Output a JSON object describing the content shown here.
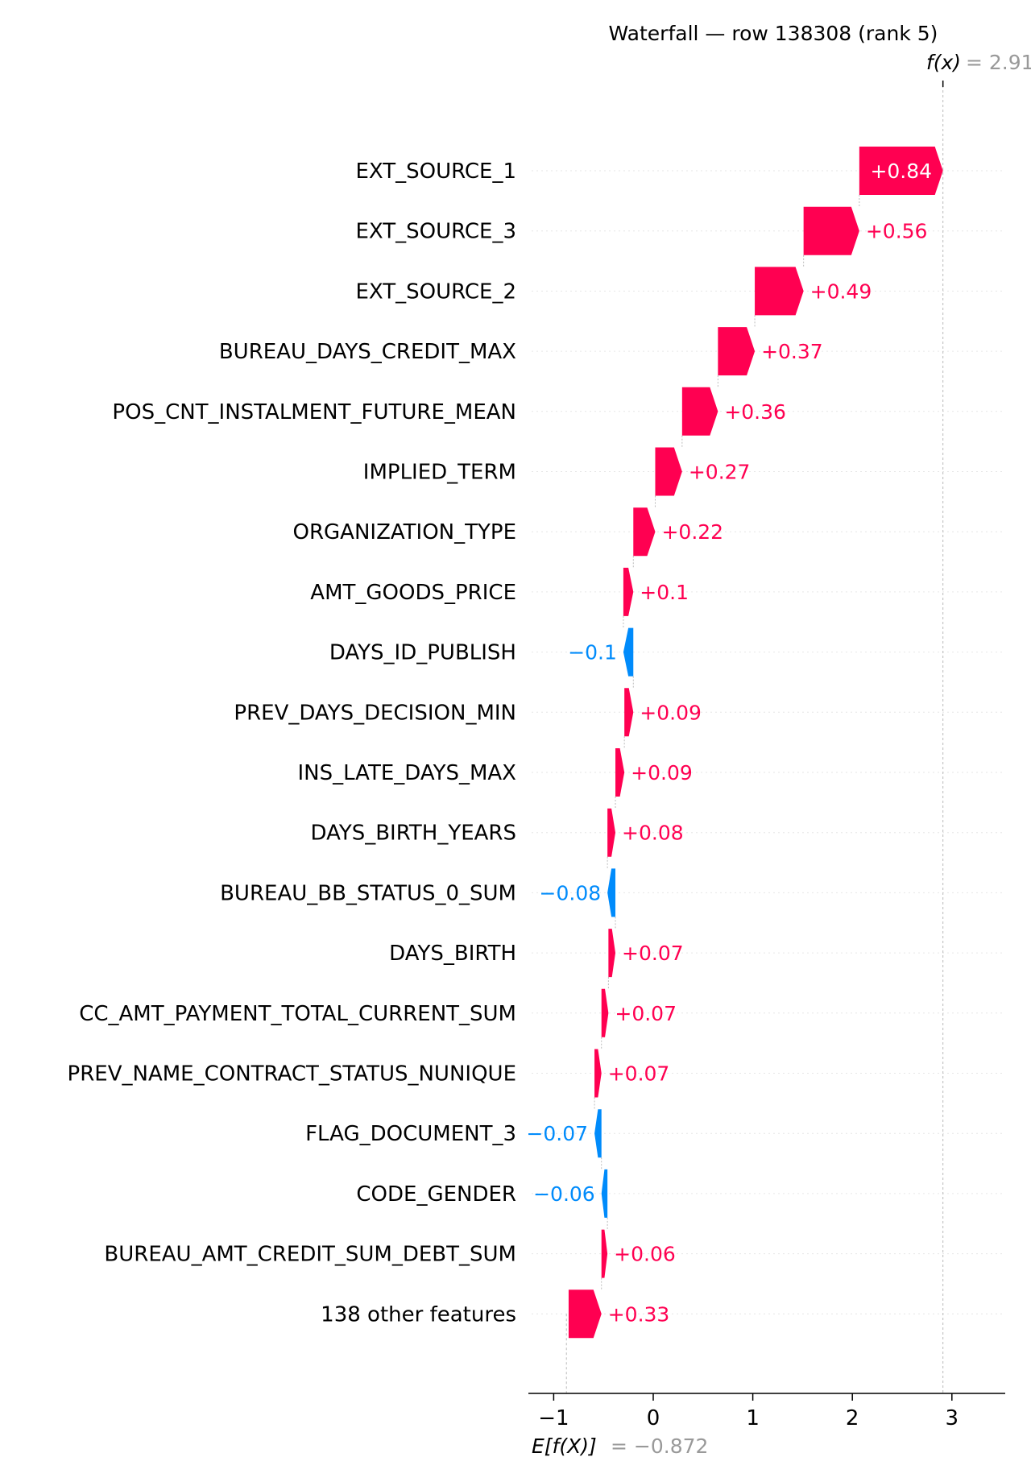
{
  "chart_data": {
    "type": "waterfall",
    "title": "Waterfall — row 138308 (rank 5)",
    "fx_label": "f(x)",
    "fx_value_text": "= 2.91",
    "ex_label": "E[f(X)]",
    "ex_value_text": "= −0.872",
    "base_value": -0.872,
    "final_value": 2.91,
    "xlim": [
      -1.3,
      3.5
    ],
    "xticks": [
      {
        "value": -1,
        "label": "−1"
      },
      {
        "value": 0,
        "label": "0"
      },
      {
        "value": 1,
        "label": "1"
      },
      {
        "value": 2,
        "label": "2"
      },
      {
        "value": 3,
        "label": "3"
      }
    ],
    "positive_color": "#ff0051",
    "negative_color": "#008bfb",
    "features": [
      {
        "name": "EXT_SOURCE_1",
        "shap": 0.84,
        "label": "+0.84"
      },
      {
        "name": "EXT_SOURCE_3",
        "shap": 0.56,
        "label": "+0.56"
      },
      {
        "name": "EXT_SOURCE_2",
        "shap": 0.49,
        "label": "+0.49"
      },
      {
        "name": "BUREAU_DAYS_CREDIT_MAX",
        "shap": 0.37,
        "label": "+0.37"
      },
      {
        "name": "POS_CNT_INSTALMENT_FUTURE_MEAN",
        "shap": 0.36,
        "label": "+0.36"
      },
      {
        "name": "IMPLIED_TERM",
        "shap": 0.27,
        "label": "+0.27"
      },
      {
        "name": "ORGANIZATION_TYPE",
        "shap": 0.22,
        "label": "+0.22"
      },
      {
        "name": "AMT_GOODS_PRICE",
        "shap": 0.1,
        "label": "+0.1"
      },
      {
        "name": "DAYS_ID_PUBLISH",
        "shap": -0.1,
        "label": "−0.1"
      },
      {
        "name": "PREV_DAYS_DECISION_MIN",
        "shap": 0.09,
        "label": "+0.09"
      },
      {
        "name": "INS_LATE_DAYS_MAX",
        "shap": 0.09,
        "label": "+0.09"
      },
      {
        "name": "DAYS_BIRTH_YEARS",
        "shap": 0.08,
        "label": "+0.08"
      },
      {
        "name": "BUREAU_BB_STATUS_0_SUM",
        "shap": -0.08,
        "label": "−0.08"
      },
      {
        "name": "DAYS_BIRTH",
        "shap": 0.07,
        "label": "+0.07"
      },
      {
        "name": "CC_AMT_PAYMENT_TOTAL_CURRENT_SUM",
        "shap": 0.07,
        "label": "+0.07"
      },
      {
        "name": "PREV_NAME_CONTRACT_STATUS_NUNIQUE",
        "shap": 0.07,
        "label": "+0.07"
      },
      {
        "name": "FLAG_DOCUMENT_3",
        "shap": -0.07,
        "label": "−0.07"
      },
      {
        "name": "CODE_GENDER",
        "shap": -0.06,
        "label": "−0.06"
      },
      {
        "name": "BUREAU_AMT_CREDIT_SUM_DEBT_SUM",
        "shap": 0.06,
        "label": "+0.06"
      },
      {
        "name": "138 other features",
        "shap": 0.33,
        "label": "+0.33"
      }
    ]
  }
}
